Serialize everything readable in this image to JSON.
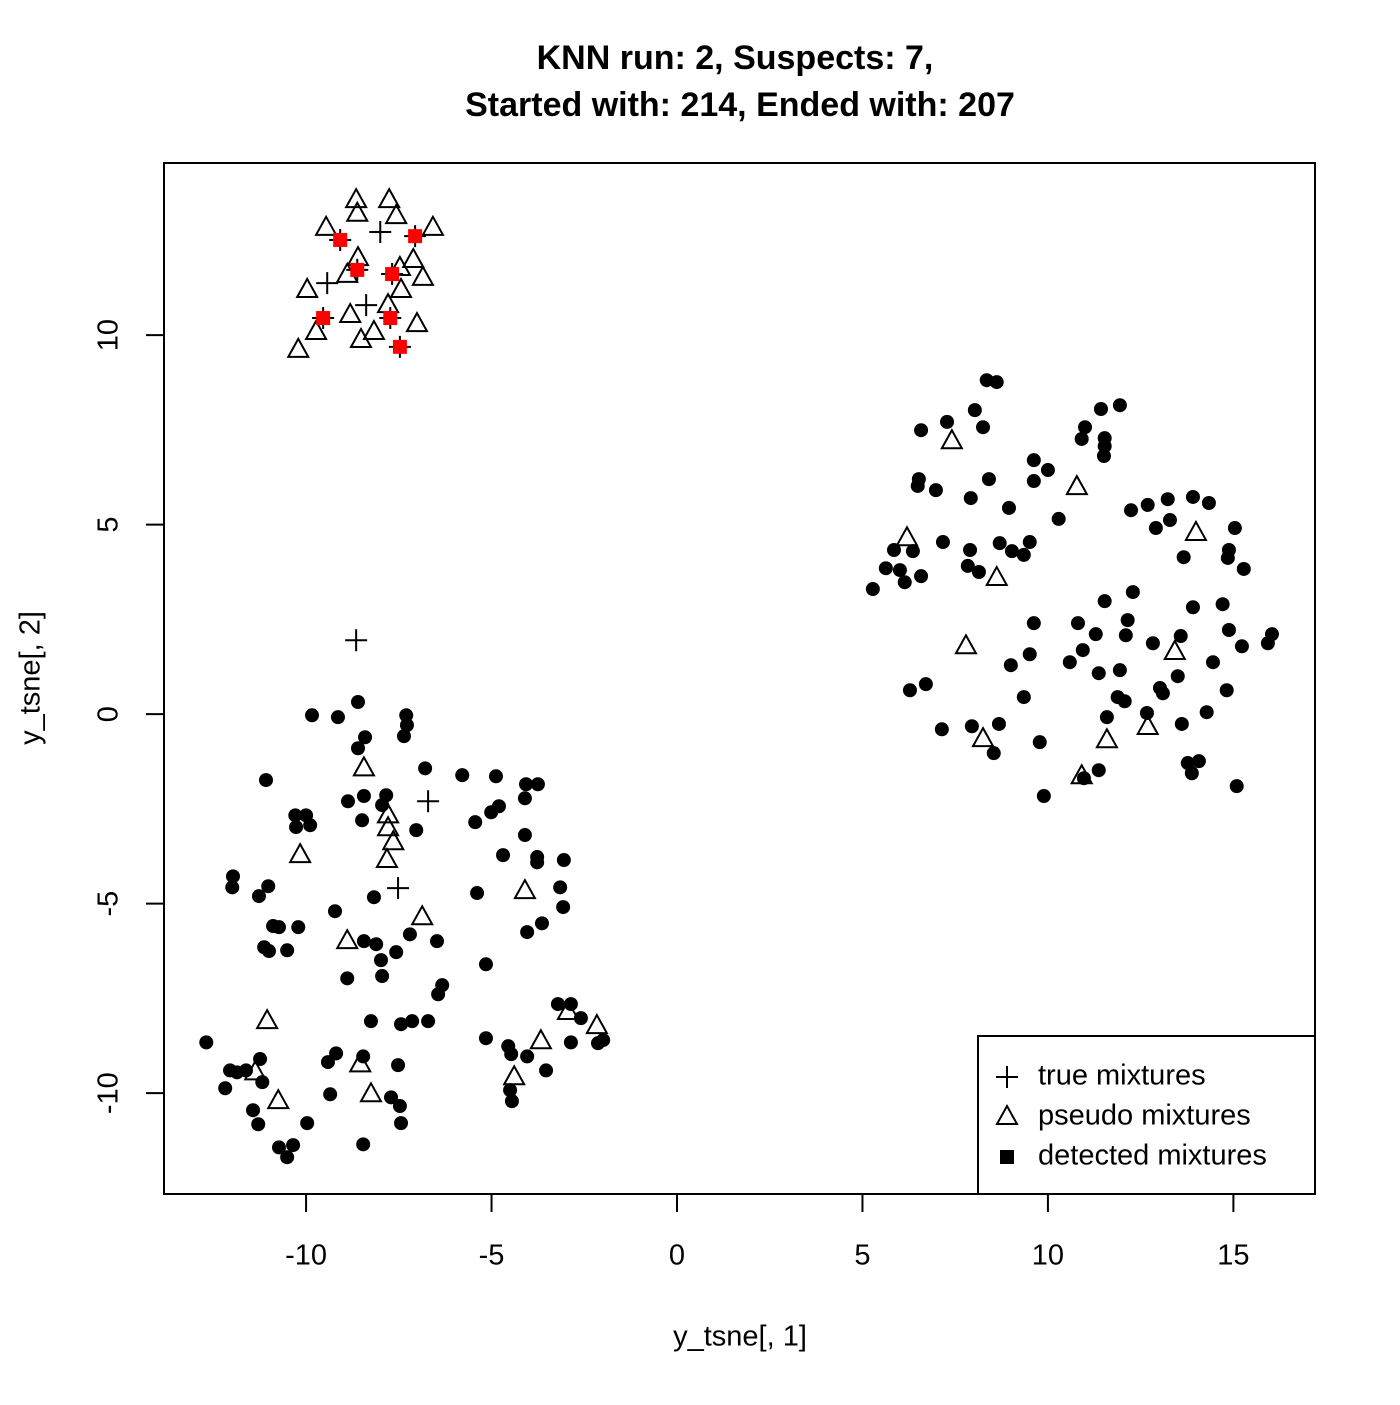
{
  "chart_data": {
    "type": "scatter",
    "title": [
      "KNN run: 2, Suspects: 7,",
      "Started with: 214, Ended with: 207"
    ],
    "x_label": "y_tsne[, 1]",
    "y_label": "y_tsne[, 2]",
    "xlim": [
      -13.83,
      17.2
    ],
    "ylim": [
      -12.66,
      14.54
    ],
    "xticks": [
      -10,
      -5,
      0,
      5,
      10,
      15
    ],
    "yticks": [
      -10,
      -5,
      0,
      5,
      10
    ],
    "legend": "bottomright",
    "series": [
      {
        "marker": "circle",
        "color": "#000000",
        "x": [
          8.35,
          8.62,
          8.03,
          7.28,
          6.58,
          8.25,
          11.43,
          11.94,
          11.0,
          10.91,
          11.53,
          11.53,
          11.51,
          9.62,
          10.0,
          9.62,
          6.52,
          6.49,
          6.98,
          7.92,
          8.41,
          8.95,
          10.29,
          12.24,
          12.69,
          13.23,
          13.91,
          14.34,
          12.91,
          13.29,
          15.04,
          7.17,
          7.9,
          8.7,
          9.03,
          9.35,
          9.51,
          14.88,
          14.85,
          5.85,
          6.36,
          13.66,
          5.63,
          6.01,
          7.84,
          8.14,
          6.14,
          6.58,
          15.28,
          5.28,
          12.29,
          11.53,
          13.91,
          14.71,
          9.62,
          10.81,
          12.15,
          11.29,
          12.1,
          13.58,
          12.83,
          16.04,
          15.93,
          14.88,
          15.23,
          9.51,
          10.59,
          10.94,
          9.0,
          11.94,
          11.37,
          14.45,
          13.5,
          13.02,
          13.1,
          6.28,
          6.71,
          14.82,
          9.35,
          11.88,
          12.07,
          11.59,
          12.67,
          7.95,
          7.14,
          8.68,
          13.61,
          14.28,
          9.78,
          8.54,
          13.77,
          14.07,
          11.37,
          10.97,
          13.88,
          9.89,
          15.09,
          -8.6,
          -9.84,
          -9.14,
          -7.3,
          -7.28,
          -7.36,
          -8.41,
          -8.6,
          -6.79,
          -11.08,
          -5.79,
          -4.88,
          -4.07,
          -3.75,
          -4.1,
          -8.87,
          -8.44,
          -7.84,
          -7.95,
          -4.8,
          -5.01,
          -5.44,
          -10.29,
          -10.0,
          -9.89,
          -10.27,
          -8.49,
          -7.03,
          -4.1,
          -4.69,
          -3.77,
          -3.77,
          -3.05,
          -11.97,
          -11.99,
          -11.02,
          -11.27,
          -3.15,
          -5.39,
          -8.17,
          -9.22,
          -3.07,
          -3.64,
          -10.89,
          -10.73,
          -10.21,
          -4.04,
          -7.2,
          -8.44,
          -6.47,
          -11.13,
          -11.0,
          -10.51,
          -8.11,
          -7.57,
          -8.89,
          -7.98,
          -7.95,
          -5.15,
          -6.33,
          -6.44,
          -3.21,
          -2.86,
          -2.59,
          -8.25,
          -6.71,
          -7.14,
          -7.44,
          -2.86,
          -5.15,
          -4.55,
          -1.99,
          -2.13,
          -12.69,
          -9.19,
          -8.46,
          -4.47,
          -4.04,
          -11.62,
          -12.05,
          -11.86,
          -3.53,
          -9.41,
          -11.24,
          -7.52,
          -11.18,
          -12.18,
          -4.5,
          -4.45,
          -9.35,
          -7.71,
          -7.47,
          -11.43,
          -9.97,
          -11.29,
          -7.44,
          -10.73,
          -10.35,
          -8.46,
          -10.51
        ],
        "y": [
          8.81,
          8.76,
          8.02,
          7.71,
          7.49,
          7.57,
          8.05,
          8.15,
          7.57,
          7.26,
          7.28,
          7.07,
          6.81,
          6.7,
          6.44,
          6.15,
          6.2,
          6.02,
          5.91,
          5.7,
          6.2,
          5.44,
          5.15,
          5.38,
          5.52,
          5.67,
          5.73,
          5.57,
          4.91,
          5.12,
          4.91,
          4.54,
          4.33,
          4.51,
          4.3,
          4.2,
          4.54,
          4.33,
          4.12,
          4.33,
          4.3,
          4.14,
          3.85,
          3.8,
          3.91,
          3.75,
          3.48,
          3.64,
          3.83,
          3.3,
          3.22,
          2.98,
          2.82,
          2.9,
          2.4,
          2.4,
          2.48,
          2.11,
          2.08,
          2.06,
          1.87,
          2.11,
          1.87,
          2.22,
          1.79,
          1.58,
          1.37,
          1.69,
          1.29,
          1.16,
          1.08,
          1.37,
          1.0,
          0.69,
          0.55,
          0.63,
          0.79,
          0.63,
          0.45,
          0.45,
          0.34,
          -0.08,
          0.03,
          -0.32,
          -0.4,
          -0.26,
          -0.26,
          0.05,
          -0.74,
          -1.03,
          -1.29,
          -1.24,
          -1.48,
          -1.69,
          -1.56,
          -2.16,
          -1.9,
          0.32,
          -0.03,
          -0.08,
          -0.03,
          -0.29,
          -0.58,
          -0.61,
          -0.9,
          -1.43,
          -1.74,
          -1.61,
          -1.64,
          -1.85,
          -1.85,
          -2.22,
          -2.3,
          -2.16,
          -2.14,
          -2.4,
          -2.43,
          -2.59,
          -2.85,
          -2.67,
          -2.67,
          -2.93,
          -2.98,
          -2.8,
          -3.06,
          -3.19,
          -3.72,
          -3.77,
          -3.91,
          -3.85,
          -4.28,
          -4.57,
          -4.54,
          -4.8,
          -4.57,
          -4.72,
          -4.83,
          -5.2,
          -5.09,
          -5.52,
          -5.59,
          -5.62,
          -5.62,
          -5.75,
          -5.81,
          -5.99,
          -5.99,
          -6.15,
          -6.25,
          -6.23,
          -6.07,
          -6.28,
          -6.97,
          -6.49,
          -6.91,
          -6.6,
          -7.15,
          -7.39,
          -7.65,
          -7.65,
          -8.02,
          -8.1,
          -8.1,
          -8.1,
          -8.18,
          -8.66,
          -8.55,
          -8.76,
          -8.6,
          -8.68,
          -8.66,
          -8.95,
          -9.03,
          -8.97,
          -9.03,
          -9.4,
          -9.4,
          -9.45,
          -9.4,
          -9.18,
          -9.1,
          -9.26,
          -9.71,
          -9.87,
          -9.92,
          -10.21,
          -10.03,
          -10.11,
          -10.34,
          -10.45,
          -10.79,
          -10.82,
          -10.79,
          -11.43,
          -11.37,
          -11.35,
          -11.69
        ]
      },
      {
        "name": "pseudo mixtures",
        "marker": "triangle",
        "color": "#000000",
        "x": [
          -8.65,
          -7.76,
          -8.62,
          -7.57,
          -9.46,
          -6.58,
          -8.6,
          -7.47,
          -7.11,
          -8.89,
          -6.85,
          -9.97,
          -7.44,
          -7.79,
          -8.81,
          -7.01,
          -9.73,
          -8.17,
          -8.52,
          -10.21,
          7.41,
          10.78,
          6.2,
          13.99,
          8.62,
          7.79,
          13.42,
          8.25,
          11.59,
          12.69,
          10.91,
          -8.44,
          -7.79,
          -7.79,
          -7.65,
          -10.16,
          -7.82,
          -4.1,
          -6.87,
          -8.89,
          -11.05,
          -2.94,
          -2.16,
          -3.67,
          -8.54,
          -4.39,
          -11.37,
          -10.75,
          -8.25
        ],
        "y": [
          13.56,
          13.56,
          13.2,
          13.14,
          12.83,
          12.83,
          12.03,
          11.77,
          11.98,
          11.59,
          11.51,
          11.19,
          11.19,
          10.79,
          10.53,
          10.29,
          10.08,
          10.08,
          9.87,
          9.61,
          7.2,
          5.99,
          4.64,
          4.78,
          3.59,
          1.79,
          1.64,
          -0.66,
          -0.69,
          -0.34,
          -1.64,
          -1.43,
          -2.67,
          -3.01,
          -3.38,
          -3.72,
          -3.85,
          -4.67,
          -5.36,
          -5.99,
          -8.1,
          -7.86,
          -8.23,
          -8.63,
          -9.24,
          -9.58,
          -9.45,
          -10.21,
          -10.03
        ]
      },
      {
        "name": "true mixtures",
        "marker": "plus",
        "color": "#000000",
        "x": [
          -8.65,
          -6.71,
          -7.52,
          -8.0,
          -9.43,
          -8.38,
          -9.08,
          -7.06,
          -8.62,
          -7.68,
          -9.54,
          -7.73,
          -7.47
        ],
        "y": [
          1.95,
          -2.3,
          -4.59,
          12.72,
          11.37,
          10.79,
          12.51,
          12.61,
          11.72,
          11.61,
          10.45,
          10.45,
          9.69
        ]
      },
      {
        "name": "detected mixtures",
        "marker": "square",
        "color": "#ff0000",
        "legend_color": "#000000",
        "x": [
          -9.08,
          -7.06,
          -8.62,
          -7.68,
          -9.54,
          -7.73,
          -7.47
        ],
        "y": [
          12.51,
          12.61,
          11.72,
          11.61,
          10.45,
          10.45,
          9.69
        ]
      }
    ],
    "legend_order": [
      "true mixtures",
      "pseudo mixtures",
      "detected mixtures"
    ]
  }
}
